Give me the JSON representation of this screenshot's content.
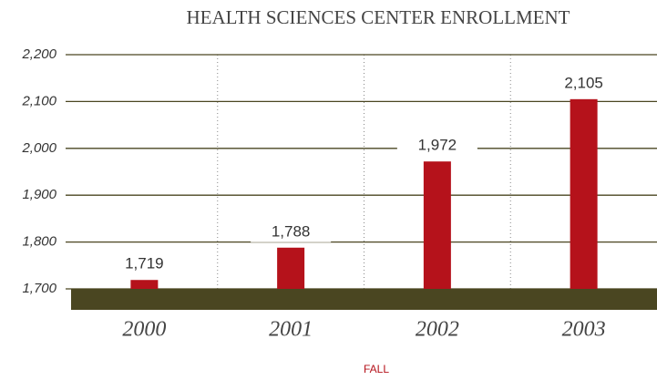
{
  "chart_data": {
    "type": "bar",
    "title": "HEALTH SCIENCES CENTER ENROLLMENT",
    "x_label": "FALL",
    "categories": [
      "2000",
      "2001",
      "2002",
      "2003"
    ],
    "values": [
      1719,
      1788,
      1972,
      2105
    ],
    "value_labels": [
      "1,719",
      "1,788",
      "1,972",
      "2,105"
    ],
    "color": "#b5121b",
    "ylim": [
      1700,
      2200
    ],
    "yticks": [
      {
        "value": 1700,
        "label": "1,700"
      },
      {
        "value": 1800,
        "label": "1,800"
      },
      {
        "value": 1900,
        "label": "1,900"
      },
      {
        "value": 2000,
        "label": "2,000"
      },
      {
        "value": 2100,
        "label": "2,100"
      },
      {
        "value": 2200,
        "label": "2,200"
      }
    ],
    "grid": true
  }
}
